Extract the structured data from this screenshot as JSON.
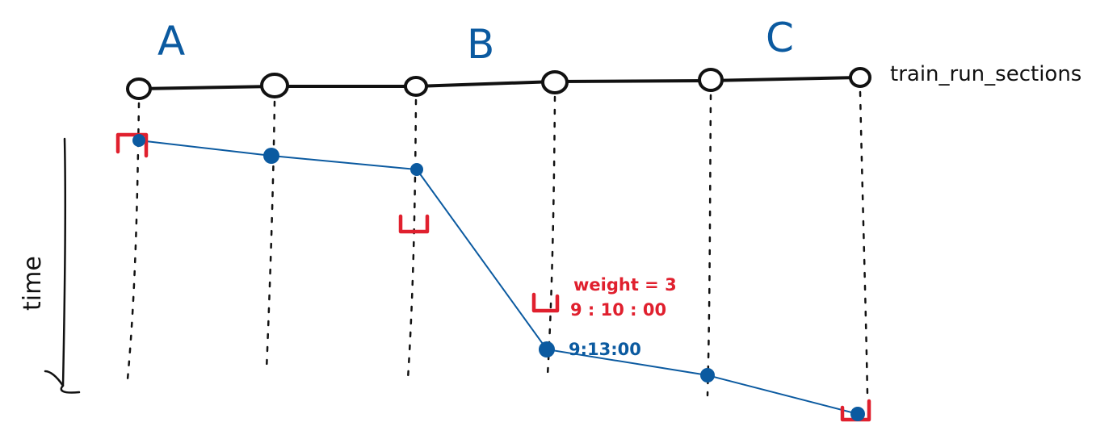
{
  "stations": [
    {
      "id": "A",
      "label": "A"
    },
    {
      "id": "B",
      "label": "B"
    },
    {
      "id": "C",
      "label": "C"
    }
  ],
  "track_label": "train_run_sections",
  "axis_label": "time",
  "annotations": {
    "weight": "weight = 3",
    "target_time": "9 : 10 : 00",
    "actual_time": "9:13:00"
  },
  "colors": {
    "track": "#111111",
    "run": "#0b5aa0",
    "constraint": "#e0202e"
  },
  "icons": {
    "time_arrow": "arrow-down-icon",
    "constraint": "bracket-icon"
  }
}
